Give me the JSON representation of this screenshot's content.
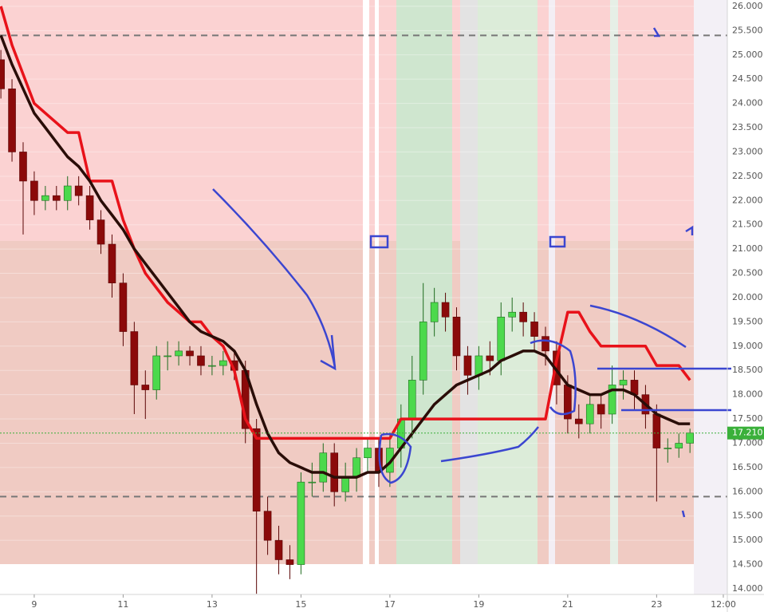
{
  "chart_data": {
    "type": "candlestick",
    "x": [
      8.25,
      8.5,
      8.75,
      9,
      9.25,
      9.5,
      9.75,
      10,
      10.25,
      10.5,
      10.75,
      11,
      11.25,
      11.5,
      11.75,
      12,
      12.25,
      12.5,
      12.75,
      13,
      13.25,
      13.5,
      13.75,
      14,
      14.25,
      14.5,
      14.75,
      15,
      15.25,
      15.5,
      15.75,
      16,
      16.25,
      16.5,
      16.75,
      17,
      17.25,
      17.5,
      17.75,
      18,
      18.25,
      18.5,
      18.75,
      19,
      19.25,
      19.5,
      19.75,
      20,
      20.25,
      20.5,
      20.75,
      21,
      21.25,
      21.5,
      21.75,
      22,
      22.25,
      22.5,
      22.75,
      23,
      23.25,
      23.5,
      23.75
    ],
    "open": [
      24.9,
      24.3,
      23.0,
      22.4,
      22.0,
      22.1,
      22.0,
      22.3,
      22.1,
      21.6,
      21.1,
      20.3,
      19.3,
      18.2,
      18.1,
      18.8,
      18.8,
      18.9,
      18.8,
      18.6,
      18.6,
      18.7,
      18.5,
      17.3,
      15.6,
      15.0,
      14.6,
      14.5,
      16.2,
      16.2,
      16.8,
      16.0,
      16.3,
      16.7,
      16.9,
      16.4,
      16.9,
      17.5,
      18.3,
      19.5,
      19.9,
      19.6,
      18.8,
      18.4,
      18.8,
      18.7,
      19.6,
      19.7,
      19.5,
      19.2,
      18.9,
      18.2,
      17.5,
      17.4,
      17.8,
      17.6,
      18.2,
      18.3,
      18.0,
      17.6,
      16.9,
      16.9,
      17.0
    ],
    "high": [
      25.1,
      24.5,
      23.2,
      22.6,
      22.3,
      22.3,
      22.5,
      22.5,
      22.3,
      21.8,
      21.3,
      20.5,
      19.5,
      18.5,
      19.0,
      19.1,
      19.1,
      19.0,
      19.0,
      18.8,
      18.9,
      18.9,
      18.7,
      17.5,
      15.9,
      15.3,
      14.9,
      16.4,
      16.6,
      17.0,
      17.0,
      16.6,
      16.9,
      17.1,
      17.1,
      17.2,
      17.8,
      18.8,
      20.3,
      20.2,
      20.1,
      19.8,
      19.0,
      19.0,
      19.1,
      19.9,
      20.0,
      19.9,
      19.7,
      19.4,
      19.1,
      18.4,
      17.8,
      18.0,
      18.0,
      18.6,
      18.5,
      18.5,
      18.2,
      17.8,
      17.1,
      17.2,
      17.3
    ],
    "low": [
      24.1,
      22.8,
      21.3,
      21.7,
      21.8,
      21.8,
      21.8,
      21.9,
      21.4,
      20.9,
      20.0,
      19.0,
      17.6,
      17.5,
      17.9,
      18.5,
      18.6,
      18.6,
      18.4,
      18.4,
      18.4,
      18.3,
      17.0,
      13.9,
      14.7,
      14.3,
      14.2,
      14.3,
      15.9,
      16.0,
      15.7,
      15.8,
      16.0,
      16.4,
      16.1,
      16.1,
      16.5,
      17.1,
      18.0,
      19.2,
      19.3,
      18.5,
      18.0,
      18.1,
      18.4,
      18.4,
      19.3,
      19.2,
      18.9,
      18.6,
      17.8,
      17.2,
      17.1,
      17.2,
      17.3,
      17.4,
      17.9,
      17.7,
      17.3,
      15.8,
      16.6,
      16.7,
      16.8
    ],
    "close": [
      24.3,
      23.0,
      22.4,
      22.0,
      22.1,
      22.0,
      22.3,
      22.1,
      21.6,
      21.1,
      20.3,
      19.3,
      18.2,
      18.1,
      18.8,
      18.8,
      18.9,
      18.8,
      18.6,
      18.6,
      18.7,
      18.5,
      17.3,
      15.6,
      15.0,
      14.6,
      14.5,
      16.2,
      16.2,
      16.8,
      16.0,
      16.3,
      16.7,
      16.9,
      16.4,
      16.9,
      17.5,
      18.3,
      19.5,
      19.9,
      19.6,
      18.8,
      18.4,
      18.8,
      18.7,
      19.6,
      19.7,
      19.5,
      19.2,
      18.9,
      18.2,
      17.5,
      17.4,
      17.8,
      17.6,
      18.2,
      18.3,
      18.0,
      17.6,
      16.9,
      16.9,
      17.0,
      17.21
    ],
    "series": [
      {
        "color": "#e8121a",
        "values": [
          26.0,
          25.2,
          24.6,
          24.0,
          23.8,
          23.6,
          23.4,
          23.4,
          22.4,
          22.4,
          22.4,
          21.6,
          21.0,
          20.5,
          20.2,
          19.9,
          19.7,
          19.5,
          19.5,
          19.2,
          19.0,
          18.5,
          17.5,
          17.1,
          17.1,
          17.1,
          17.1,
          17.1,
          17.1,
          17.1,
          17.1,
          17.1,
          17.1,
          17.1,
          17.1,
          17.1,
          17.5,
          17.5,
          17.5,
          17.5,
          17.5,
          17.5,
          17.5,
          17.5,
          17.5,
          17.5,
          17.5,
          17.5,
          17.5,
          17.5,
          18.7,
          19.7,
          19.7,
          19.3,
          19.0,
          19.0,
          19.0,
          19.0,
          19.0,
          18.6,
          18.6,
          18.6,
          18.3
        ]
      },
      {
        "color": "#2a0d08",
        "values": [
          25.4,
          24.8,
          24.3,
          23.8,
          23.5,
          23.2,
          22.9,
          22.7,
          22.4,
          22.0,
          21.7,
          21.4,
          21.0,
          20.7,
          20.4,
          20.1,
          19.8,
          19.5,
          19.3,
          19.2,
          19.1,
          18.9,
          18.5,
          17.8,
          17.2,
          16.8,
          16.6,
          16.5,
          16.4,
          16.4,
          16.3,
          16.3,
          16.3,
          16.4,
          16.4,
          16.6,
          16.9,
          17.2,
          17.5,
          17.8,
          18.0,
          18.2,
          18.3,
          18.4,
          18.5,
          18.7,
          18.8,
          18.9,
          18.9,
          18.8,
          18.5,
          18.2,
          18.1,
          18.0,
          18.0,
          18.1,
          18.1,
          18.0,
          17.8,
          17.6,
          17.5,
          17.4,
          17.4
        ]
      }
    ],
    "xlim": [
      8.23,
      24.59
    ],
    "ylim": [
      13.885,
      26.13
    ],
    "xticks": [
      9,
      11,
      13,
      15,
      17,
      19,
      21,
      23,
      {
        "value": 24.5,
        "label": "12:00"
      }
    ],
    "yticks": [
      {
        "value": 14,
        "label": "14.000"
      },
      {
        "value": 14.5,
        "label": "14.500"
      },
      {
        "value": 15,
        "label": "15.000"
      },
      {
        "value": 15.5,
        "label": "15.500"
      },
      {
        "value": 16,
        "label": "16.000"
      },
      {
        "value": 16.5,
        "label": "16.500"
      },
      {
        "value": 17,
        "label": "17.000"
      },
      {
        "value": 17.5,
        "label": "17.500"
      },
      {
        "value": 18,
        "label": "18.000"
      },
      {
        "value": 18.5,
        "label": "18.500"
      },
      {
        "value": 19,
        "label": "19.000"
      },
      {
        "value": 19.5,
        "label": "19.500"
      },
      {
        "value": 20,
        "label": "20.000"
      },
      {
        "value": 20.5,
        "label": "20.500"
      },
      {
        "value": 21,
        "label": "21.000"
      },
      {
        "value": 21.5,
        "label": "21.500"
      },
      {
        "value": 22,
        "label": "22.000"
      },
      {
        "value": 22.5,
        "label": "22.500"
      },
      {
        "value": 23,
        "label": "23.000"
      },
      {
        "value": 23.5,
        "label": "23.500"
      },
      {
        "value": 24,
        "label": "24.000"
      },
      {
        "value": 24.5,
        "label": "24.500"
      },
      {
        "value": 25,
        "label": "25.000"
      },
      {
        "value": 25.5,
        "label": "25.500"
      },
      {
        "value": 26,
        "label": "26.000"
      }
    ],
    "hlines": [
      25.4,
      15.9
    ],
    "price_line": {
      "value": 17.21,
      "label": "17.210"
    },
    "up_color": "#4cd94c",
    "down_color": "#8b0a0a"
  }
}
